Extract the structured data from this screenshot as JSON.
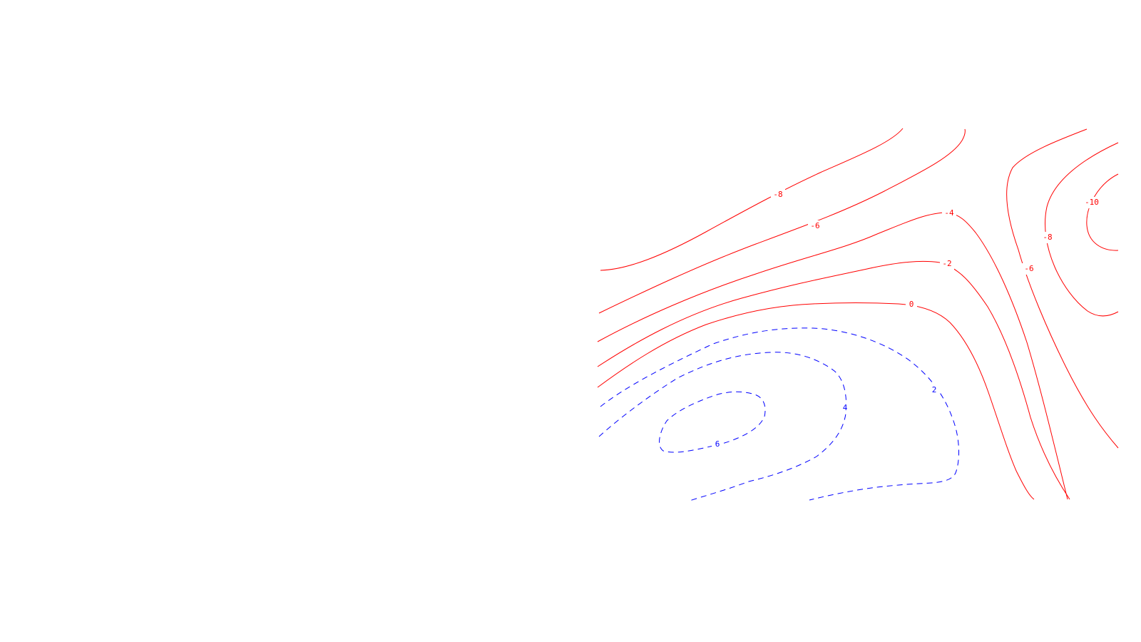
{
  "chart_data": {
    "type": "contour",
    "title": "",
    "xlabel": "",
    "ylabel": "",
    "grid": false,
    "legend": false,
    "colors": {
      "positive_level": "#ff0000",
      "negative_level": "#0000ff"
    },
    "line_styles": {
      "positive_level": "solid",
      "negative_level": "dashed"
    },
    "contours": [
      {
        "level": -10,
        "label": "-10"
      },
      {
        "level": -8,
        "label": "-8"
      },
      {
        "level": -8,
        "label": "-8"
      },
      {
        "level": -6,
        "label": "-6"
      },
      {
        "level": -6,
        "label": "-6"
      },
      {
        "level": -4,
        "label": "-4"
      },
      {
        "level": -2,
        "label": "-2"
      },
      {
        "level": 0,
        "label": "0"
      },
      {
        "level": 2,
        "label": "2"
      },
      {
        "level": 4,
        "label": "4"
      },
      {
        "level": 6,
        "label": "6"
      }
    ]
  }
}
